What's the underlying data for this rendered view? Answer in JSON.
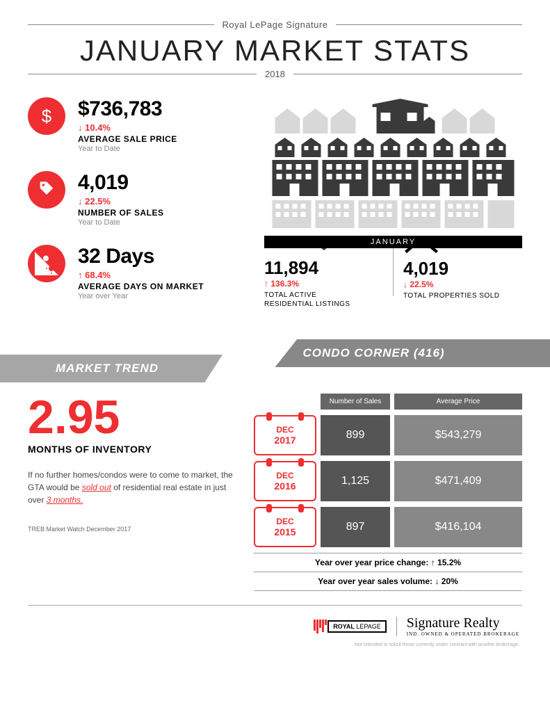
{
  "header": {
    "brand": "Royal LePage Signature",
    "title": "JANUARY MARKET STATS",
    "year": "2018"
  },
  "stats": {
    "avg_price": {
      "value": "$736,783",
      "change": "10.4%",
      "direction": "down",
      "label": "AVERAGE SALE PRICE",
      "sub": "Year to Date"
    },
    "num_sales": {
      "value": "4,019",
      "change": "22.5%",
      "direction": "down",
      "label": "NUMBER OF SALES",
      "sub": "Year to Date"
    },
    "days_market": {
      "value": "32 Days",
      "change": "68.4%",
      "direction": "up",
      "label": "AVERAGE DAYS ON MARKET",
      "sub": "Year over Year"
    }
  },
  "month_bar": "JANUARY",
  "right_stats": {
    "listings": {
      "value": "11,894",
      "change": "136.3%",
      "direction": "up",
      "label_l1": "TOTAL ACTIVE",
      "label_l2": "RESIDENTIAL LISTINGS"
    },
    "sold": {
      "value": "4,019",
      "change": "22.5%",
      "direction": "down",
      "label_l1": "TOTAL PROPERTIES SOLD",
      "label_l2": ""
    }
  },
  "banners": {
    "trend": "MARKET TREND",
    "condo": "CONDO CORNER (416)"
  },
  "trend": {
    "months_value": "2.95",
    "months_label": "MONTHS OF INVENTORY",
    "text_pre": "If no further homes/condos were to come to market, the GTA would be ",
    "soldout": "sold out",
    "text_mid": " of residential real estate in just over ",
    "threemonths": "3 months.",
    "source": "TREB Market Watch December 2017"
  },
  "condo": {
    "header_sales": "Number of Sales",
    "header_price": "Average Price",
    "rows": [
      {
        "month": "DEC",
        "year": "2017",
        "sales": "899",
        "price": "$543,279"
      },
      {
        "month": "DEC",
        "year": "2016",
        "sales": "1,125",
        "price": "$471,409"
      },
      {
        "month": "DEC",
        "year": "2015",
        "sales": "897",
        "price": "$416,104"
      }
    ],
    "yoy_price_label": "Year over year price change:",
    "yoy_price_value": "15.2%",
    "yoy_price_dir": "up",
    "yoy_vol_label": "Year over year sales volume:",
    "yoy_vol_value": "20%",
    "yoy_vol_dir": "down"
  },
  "footer": {
    "royal": "ROYAL",
    "lepage": "LEPAGE",
    "sig_title": "Signature Realty",
    "sig_sub": "IND. OWNED & OPERATED BROKERAGE",
    "disclaimer": "Not intended to solicit those currently under contract with another brokerage."
  },
  "colors": {
    "accent": "#ee2e31",
    "gray_banner": "#a6a6a6",
    "gray_banner2": "#888888"
  }
}
